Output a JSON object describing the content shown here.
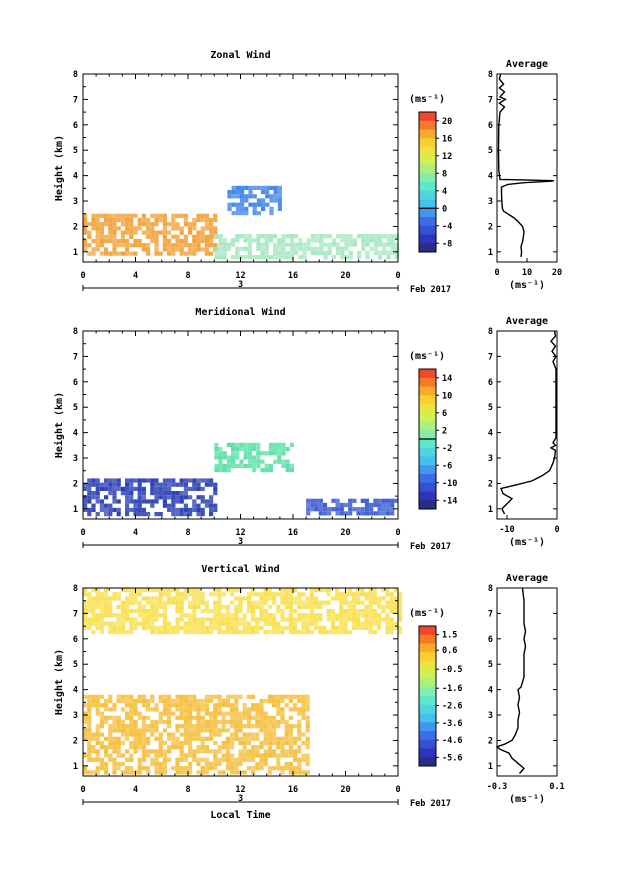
{
  "chart_data": [
    {
      "type": "heatmap",
      "title": "Zonal Wind",
      "ylabel": "Height (km)",
      "xlabel": "",
      "x_ticks": [
        "0",
        "4",
        "8",
        "12",
        "16",
        "20",
        "0"
      ],
      "xlim": [
        0,
        24
      ],
      "y_ticks": [
        "1",
        "2",
        "3",
        "4",
        "5",
        "6",
        "7",
        "8"
      ],
      "ylim": [
        0.6,
        8
      ],
      "date_label": "3",
      "month_label": "Feb 2017",
      "colorbar": {
        "unit_label": "(ms⁻¹)",
        "range": [
          -10,
          22
        ],
        "tick_labels": [
          "20",
          "16",
          "12",
          "8",
          "4",
          "0",
          "-4",
          "-8"
        ],
        "tick_values": [
          20,
          16,
          12,
          8,
          4,
          0,
          -4,
          -8
        ],
        "zero_line": 0
      },
      "average_profile": {
        "title": "Average",
        "xlabel": "(ms⁻¹)",
        "x_ticks": [
          "0",
          "10",
          "20"
        ],
        "x_tick_values": [
          0,
          10,
          20
        ],
        "xlim": [
          0,
          20
        ],
        "y_ticks": [
          "1",
          "2",
          "3",
          "4",
          "5",
          "6",
          "7",
          "8"
        ],
        "ylim": [
          0.6,
          8
        ],
        "profile": [
          [
            8,
            0.8
          ],
          [
            8.2,
            1.0
          ],
          [
            8,
            1.2
          ],
          [
            8.5,
            1.4
          ],
          [
            8.8,
            1.6
          ],
          [
            9,
            1.8
          ],
          [
            8.5,
            2.0
          ],
          [
            7,
            2.2
          ],
          [
            5.5,
            2.35
          ],
          [
            3.5,
            2.5
          ],
          [
            2.2,
            2.6
          ],
          [
            1.8,
            2.7
          ],
          [
            1.6,
            3.0
          ],
          [
            1.5,
            3.3
          ],
          [
            1.5,
            3.55
          ],
          [
            3.5,
            3.65
          ],
          [
            9,
            3.72
          ],
          [
            18,
            3.78
          ],
          [
            19,
            3.8
          ],
          [
            1.0,
            3.85
          ],
          [
            0.6,
            4.2
          ],
          [
            0.5,
            5.0
          ],
          [
            0.6,
            6.0
          ],
          [
            1.0,
            6.5
          ],
          [
            2.5,
            6.7
          ],
          [
            0.8,
            6.85
          ],
          [
            2.8,
            7.0
          ],
          [
            1.0,
            7.1
          ],
          [
            2.5,
            7.3
          ],
          [
            0.8,
            7.45
          ],
          [
            2.2,
            7.6
          ],
          [
            0.8,
            7.8
          ],
          [
            1.2,
            8.0
          ]
        ]
      },
      "regions": [
        {
          "label": "low-level westerly band",
          "x": [
            0,
            10
          ],
          "y": [
            0.9,
            2.5
          ],
          "color": "#f2a23a"
        },
        {
          "label": "low-level band east",
          "x": [
            10,
            24
          ],
          "y": [
            0.8,
            1.7
          ],
          "color": "#a8e8c0"
        },
        {
          "label": "easterly cluster",
          "x": [
            11,
            15
          ],
          "y": [
            2.6,
            3.6
          ],
          "color": "#3f86e8"
        }
      ]
    },
    {
      "type": "heatmap",
      "title": "Meridional Wind",
      "ylabel": "Height (km)",
      "xlabel": "",
      "x_ticks": [
        "0",
        "4",
        "8",
        "12",
        "16",
        "20",
        "0"
      ],
      "xlim": [
        0,
        24
      ],
      "y_ticks": [
        "1",
        "2",
        "3",
        "4",
        "5",
        "6",
        "7",
        "8"
      ],
      "ylim": [
        0.6,
        8
      ],
      "date_label": "3",
      "month_label": "Feb 2017",
      "colorbar": {
        "unit_label": "(ms⁻¹)",
        "range": [
          -16,
          16
        ],
        "tick_labels": [
          "14",
          "10",
          "6",
          "2",
          "-2",
          "-6",
          "-10",
          "-14"
        ],
        "tick_values": [
          14,
          10,
          6,
          2,
          -2,
          -6,
          -10,
          -14
        ],
        "zero_line": 0
      },
      "average_profile": {
        "title": "Average",
        "xlabel": "(ms⁻¹)",
        "x_ticks": [
          "-10",
          "0"
        ],
        "x_tick_values": [
          -10,
          0
        ],
        "xlim": [
          -12,
          0
        ],
        "y_ticks": [
          "1",
          "2",
          "3",
          "4",
          "5",
          "6",
          "7",
          "8"
        ],
        "ylim": [
          0.6,
          8
        ],
        "profile": [
          [
            -10.5,
            0.8
          ],
          [
            -11,
            1.0
          ],
          [
            -10,
            1.2
          ],
          [
            -9,
            1.4
          ],
          [
            -10.8,
            1.6
          ],
          [
            -11.2,
            1.8
          ],
          [
            -8,
            1.95
          ],
          [
            -5,
            2.1
          ],
          [
            -3,
            2.3
          ],
          [
            -1.5,
            2.5
          ],
          [
            -0.8,
            2.8
          ],
          [
            -0.5,
            3.0
          ],
          [
            -0.3,
            3.3
          ],
          [
            -1.2,
            3.4
          ],
          [
            -0.3,
            3.5
          ],
          [
            -0.8,
            3.6
          ],
          [
            -0.2,
            3.8
          ],
          [
            -0.2,
            5.0
          ],
          [
            -0.2,
            6.5
          ],
          [
            -0.8,
            6.8
          ],
          [
            -0.2,
            7.0
          ],
          [
            -1.0,
            7.2
          ],
          [
            -0.3,
            7.4
          ],
          [
            -1.2,
            7.6
          ],
          [
            -0.3,
            7.8
          ],
          [
            -0.5,
            8.0
          ]
        ]
      },
      "regions": [
        {
          "label": "northerly near surface",
          "x": [
            0,
            10
          ],
          "y": [
            0.8,
            2.2
          ],
          "color": "#2b3fb5"
        },
        {
          "label": "southerly cluster",
          "x": [
            10,
            16
          ],
          "y": [
            2.6,
            3.6
          ],
          "color": "#5de0a8"
        },
        {
          "label": "northerly east",
          "x": [
            17,
            24
          ],
          "y": [
            0.8,
            1.4
          ],
          "color": "#3a5ad0"
        }
      ]
    },
    {
      "type": "heatmap",
      "title": "Vertical Wind",
      "ylabel": "Height (km)",
      "xlabel": "Local Time",
      "x_ticks": [
        "0",
        "4",
        "8",
        "12",
        "16",
        "20",
        "0"
      ],
      "xlim": [
        0,
        24
      ],
      "y_ticks": [
        "1",
        "2",
        "3",
        "4",
        "5",
        "6",
        "7",
        "8"
      ],
      "ylim": [
        0.6,
        8
      ],
      "date_label": "3",
      "month_label": "Feb 2017",
      "colorbar": {
        "unit_label": "(ms⁻¹)",
        "range": [
          -6.1,
          2.0
        ],
        "tick_labels": [
          "1.5",
          "0.6",
          "-0.5",
          "-1.6",
          "-2.6",
          "-3.6",
          "-4.6",
          "-5.6"
        ],
        "tick_values": [
          1.5,
          0.6,
          -0.5,
          -1.6,
          -2.6,
          -3.6,
          -4.6,
          -5.6
        ]
      },
      "average_profile": {
        "title": "Average",
        "xlabel": "(ms⁻¹)",
        "x_ticks": [
          "-0.3",
          "0.1"
        ],
        "x_tick_values": [
          -0.3,
          0.1
        ],
        "xlim": [
          -0.3,
          0.1
        ],
        "y_ticks": [
          "1",
          "2",
          "3",
          "4",
          "5",
          "6",
          "7",
          "8"
        ],
        "ylim": [
          0.6,
          8
        ],
        "profile": [
          [
            -0.15,
            0.7
          ],
          [
            -0.12,
            0.9
          ],
          [
            -0.16,
            1.1
          ],
          [
            -0.2,
            1.3
          ],
          [
            -0.22,
            1.5
          ],
          [
            -0.28,
            1.65
          ],
          [
            -0.3,
            1.75
          ],
          [
            -0.25,
            1.85
          ],
          [
            -0.2,
            2.0
          ],
          [
            -0.18,
            2.2
          ],
          [
            -0.16,
            2.5
          ],
          [
            -0.16,
            2.8
          ],
          [
            -0.15,
            3.1
          ],
          [
            -0.16,
            3.4
          ],
          [
            -0.15,
            3.7
          ],
          [
            -0.16,
            4.0
          ],
          [
            -0.14,
            4.1
          ],
          [
            -0.12,
            4.5
          ],
          [
            -0.12,
            5.0
          ],
          [
            -0.12,
            5.4
          ],
          [
            -0.11,
            5.7
          ],
          [
            -0.12,
            6.0
          ],
          [
            -0.11,
            6.3
          ],
          [
            -0.12,
            6.6
          ],
          [
            -0.12,
            7.0
          ],
          [
            -0.12,
            7.5
          ],
          [
            -0.13,
            8.0
          ]
        ]
      },
      "regions": [
        {
          "label": "downward low levels",
          "x": [
            0,
            17
          ],
          "y": [
            0.7,
            3.8
          ],
          "color": "#f5c040"
        },
        {
          "label": "sparse upper",
          "x": [
            0,
            24
          ],
          "y": [
            6.3,
            8.0
          ],
          "color": "#f8e050"
        }
      ]
    }
  ]
}
